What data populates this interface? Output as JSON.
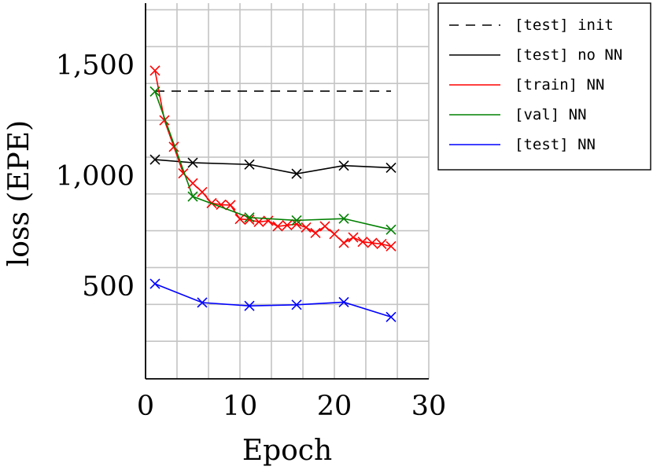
{
  "chart_data": {
    "type": "line",
    "title": "",
    "xlabel": "Epoch",
    "ylabel": "loss (EPE)",
    "xlim": [
      0,
      30
    ],
    "ylim": [
      80,
      1780
    ],
    "x_ticks": [
      0,
      10,
      20,
      30
    ],
    "x_tick_labels": [
      "0",
      "10",
      "20",
      "30"
    ],
    "y_ticks": [
      500,
      1000,
      1500
    ],
    "y_tick_labels": [
      "500",
      "1,000",
      "1,500"
    ],
    "grid": true,
    "x_grid": [
      0,
      3.33,
      6.67,
      10,
      13.33,
      16.67,
      20,
      23.33,
      26.67,
      30
    ],
    "y_grid": [
      250,
      416.7,
      583.3,
      750,
      916.7,
      1083.3,
      1250,
      1416.7,
      1583.3,
      1750
    ],
    "legend_position": "outside-right-top",
    "series": [
      {
        "name": "[test] init",
        "color": "#000000",
        "dash": "dashed",
        "marker": "none",
        "x": [
          1,
          26
        ],
        "y": [
          1382,
          1382
        ]
      },
      {
        "name": "[test] no NN",
        "color": "#000000",
        "dash": "solid",
        "marker": "x",
        "x": [
          1,
          5,
          11,
          16,
          21,
          26
        ],
        "y": [
          1072,
          1058,
          1050,
          1008,
          1045,
          1035
        ]
      },
      {
        "name": "[train] NN",
        "color": "#ff0000",
        "dash": "solid",
        "marker": "x",
        "x": [
          1,
          2,
          3,
          4,
          5,
          6,
          7,
          8,
          9,
          10,
          11,
          12,
          13,
          14,
          15,
          16,
          17,
          18,
          19,
          20,
          21,
          22,
          23,
          24,
          25,
          26
        ],
        "y": [
          1475,
          1250,
          1130,
          1010,
          965,
          925,
          875,
          868,
          866,
          803,
          800,
          790,
          795,
          770,
          775,
          780,
          765,
          740,
          770,
          735,
          695,
          720,
          700,
          695,
          690,
          680
        ]
      },
      {
        "name": "[val] NN",
        "color": "#008000",
        "dash": "solid",
        "marker": "x",
        "x": [
          1,
          5,
          11,
          16,
          21,
          26
        ],
        "y": [
          1380,
          905,
          810,
          797,
          805,
          755
        ]
      },
      {
        "name": "[test] NN",
        "color": "#0000ff",
        "dash": "solid",
        "marker": "x",
        "x": [
          1,
          6,
          11,
          16,
          21,
          26
        ],
        "y": [
          510,
          425,
          410,
          415,
          427,
          360
        ]
      }
    ]
  }
}
